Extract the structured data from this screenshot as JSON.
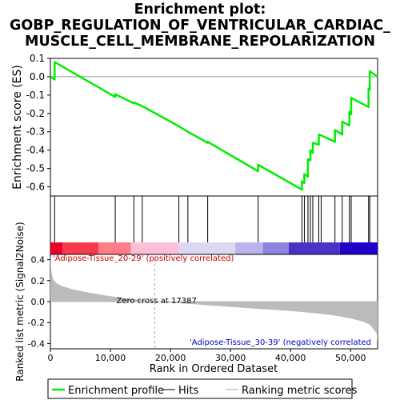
{
  "title_lines": [
    "Enrichment plot:",
    "GOBP_REGULATION_OF_VENTRICULAR_CARDIAC_",
    "MUSCLE_CELL_MEMBRANE_REPOLARIZATION"
  ],
  "colors": {
    "enrichment_line": "#00ee00",
    "hit_line": "#000000",
    "metric_fill": "#bbbbbb",
    "zero_line": "#aaaaaa",
    "red_label": "#cc0000",
    "blue_label": "#0000cc"
  },
  "chart_data": [
    {
      "type": "line",
      "name": "enrichment_profile",
      "ylabel": "Enrichment score (ES)",
      "ylim": [
        -0.65,
        0.1
      ],
      "yticks": [
        0.1,
        0.0,
        -0.1,
        -0.2,
        -0.3,
        -0.4,
        -0.5,
        -0.6
      ],
      "ytick_labels": [
        "0.1",
        "0.0",
        "-0.1",
        "-0.2",
        "-0.3",
        "-0.4",
        "-0.5",
        "-0.6"
      ],
      "xlim": [
        0,
        54500
      ],
      "grid": false,
      "series": [
        {
          "name": "Enrichment profile",
          "x": [
            0,
            700,
            700,
            10800,
            10800,
            13900,
            13900,
            15300,
            15300,
            21400,
            21400,
            22900,
            22900,
            26200,
            26200,
            34600,
            34600,
            41900,
            41900,
            42300,
            42300,
            42900,
            42900,
            43300,
            43300,
            43700,
            43700,
            44700,
            44700,
            45100,
            45100,
            47400,
            47400,
            48600,
            48600,
            49800,
            49800,
            50100,
            50100,
            53000,
            53000,
            53200,
            53200,
            54500
          ],
          "y": [
            0.0,
            -0.015,
            0.08,
            -0.11,
            -0.095,
            -0.145,
            -0.14,
            -0.16,
            -0.16,
            -0.27,
            -0.27,
            -0.3,
            -0.3,
            -0.36,
            -0.355,
            -0.515,
            -0.48,
            -0.615,
            -0.57,
            -0.58,
            -0.53,
            -0.545,
            -0.45,
            -0.455,
            -0.4,
            -0.415,
            -0.36,
            -0.37,
            -0.315,
            -0.32,
            -0.32,
            -0.355,
            -0.29,
            -0.315,
            -0.245,
            -0.265,
            -0.19,
            -0.205,
            -0.115,
            -0.165,
            -0.065,
            -0.07,
            0.03,
            0.0
          ]
        }
      ]
    },
    {
      "type": "hits",
      "name": "gene_set_hits",
      "xlim": [
        0,
        54500
      ],
      "positions": [
        700,
        10800,
        13900,
        15300,
        21400,
        22900,
        26200,
        34600,
        41900,
        42300,
        42900,
        43300,
        43700,
        44700,
        45100,
        47400,
        48600,
        49800,
        50100,
        53000,
        53200
      ]
    },
    {
      "type": "heatmap",
      "name": "ranked_list_colorbar",
      "xlim": [
        0,
        54500
      ],
      "segments": [
        {
          "x0": 0,
          "x1": 2000,
          "color": "#e8002a"
        },
        {
          "x0": 2000,
          "x1": 8000,
          "color": "#f83a4a"
        },
        {
          "x0": 8000,
          "x1": 13400,
          "color": "#ff7c88"
        },
        {
          "x0": 13400,
          "x1": 21400,
          "color": "#ffbfd8"
        },
        {
          "x0": 21400,
          "x1": 30800,
          "color": "#dcd8f4"
        },
        {
          "x0": 30800,
          "x1": 35400,
          "color": "#bbb3ec"
        },
        {
          "x0": 35400,
          "x1": 39700,
          "color": "#8d84de"
        },
        {
          "x0": 39700,
          "x1": 48200,
          "color": "#4a32c8"
        },
        {
          "x0": 48200,
          "x1": 54500,
          "color": "#2200cc"
        }
      ],
      "label_left": "'Adipose-Tissue_20-29' (positively correlated)",
      "label_right": "'Adipose-Tissue_30-39' (negatively correlated"
    },
    {
      "type": "area",
      "name": "ranked_list_metric",
      "xlabel": "Rank in Ordered Dataset",
      "ylabel": "Ranked list metric (Signal2Noise)",
      "xlim": [
        0,
        54500
      ],
      "ylim": [
        -0.45,
        0.45
      ],
      "xticks": [
        0,
        10000,
        20000,
        30000,
        40000,
        50000
      ],
      "xtick_labels": [
        "0",
        "10,000",
        "20,000",
        "30,000",
        "40,000",
        "50,000"
      ],
      "yticks": [
        0.4,
        0.2,
        0.0,
        -0.2,
        -0.4
      ],
      "ytick_labels": [
        "0.4",
        "0.2",
        "0.0",
        "-0.2",
        "-0.4"
      ],
      "x": [
        0,
        150,
        400,
        900,
        1800,
        3500,
        6000,
        9000,
        12000,
        15000,
        17387,
        20000,
        25000,
        30000,
        35000,
        40000,
        44000,
        47000,
        50000,
        52000,
        53200,
        53800,
        54300,
        54500
      ],
      "y": [
        0.45,
        0.3,
        0.22,
        0.18,
        0.15,
        0.12,
        0.09,
        0.06,
        0.035,
        0.015,
        0.0,
        -0.01,
        -0.03,
        -0.05,
        -0.07,
        -0.09,
        -0.11,
        -0.13,
        -0.16,
        -0.19,
        -0.22,
        -0.26,
        -0.3,
        -0.38
      ],
      "zero_cross_label": "Zero cross at 17387",
      "zero_cross_x": 17387
    }
  ],
  "legend": {
    "position": "bottom",
    "items": [
      "Enrichment profile",
      "Hits",
      "Ranking metric scores"
    ]
  }
}
